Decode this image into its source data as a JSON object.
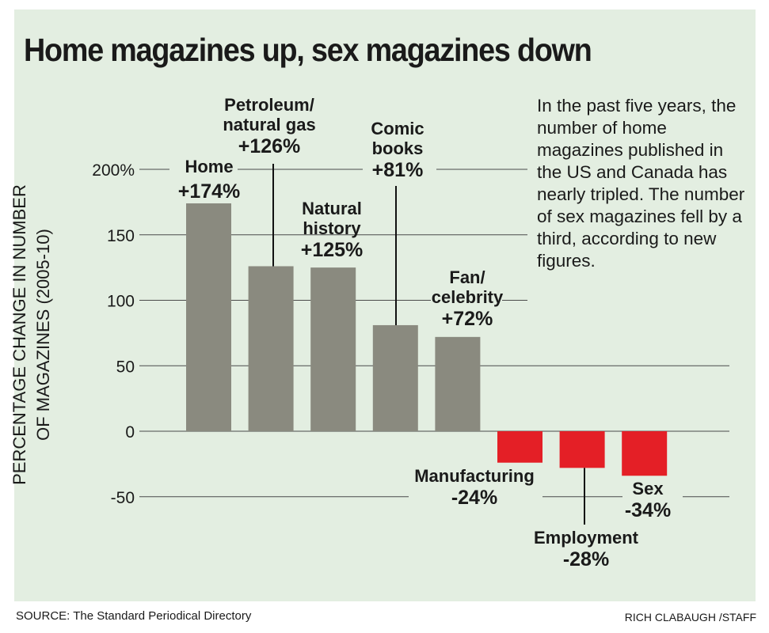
{
  "title": "Home magazines up, sex magazines down",
  "note": "In the past five years, the number of home magazines published in the US and Canada has nearly tripled. The number of sex magazines fell by a third, according to new figures.",
  "source": "SOURCE: The Standard Periodical Directory",
  "credit": "RICH CLABAUGH /STAFF",
  "colors": {
    "background": "#e3eee1",
    "positive_bar": "#8a8a7f",
    "negative_bar": "#e41f26",
    "gridline": "#4a4a4a",
    "text": "#1a1a1a"
  },
  "chart_data": {
    "type": "bar",
    "title": "Home magazines up, sex magazines down",
    "ylabel_lines": [
      "PERCENTAGE CHANGE  IN NUMBER",
      "OF MAGAZINES (2005-10)"
    ],
    "xlabel": "",
    "ylim": [
      -50,
      200
    ],
    "yticks": [
      200,
      150,
      100,
      50,
      0,
      -50
    ],
    "ytick_labels": [
      "200%",
      "150",
      "100",
      "50",
      "0",
      "-50"
    ],
    "grid": true,
    "categories": [
      "Home",
      "Petroleum/natural gas",
      "Natural history",
      "Comic books",
      "Fan/celebrity",
      "Manufacturing",
      "Employment",
      "Sex"
    ],
    "values": [
      174,
      126,
      125,
      81,
      72,
      -24,
      -28,
      -34
    ],
    "bar_labels": [
      {
        "name": [
          "Home"
        ],
        "value": "+174%"
      },
      {
        "name": [
          "Petroleum/",
          "natural gas"
        ],
        "value": "+126%"
      },
      {
        "name": [
          "Natural",
          "history"
        ],
        "value": "+125%"
      },
      {
        "name": [
          "Comic",
          "books"
        ],
        "value": "+81%"
      },
      {
        "name": [
          "Fan/",
          "celebrity"
        ],
        "value": "+72%"
      },
      {
        "name": [
          "Manufacturing"
        ],
        "value": "-24%"
      },
      {
        "name": [
          "Employment"
        ],
        "value": "-28%"
      },
      {
        "name": [
          "Sex"
        ],
        "value": "-34%"
      }
    ]
  }
}
